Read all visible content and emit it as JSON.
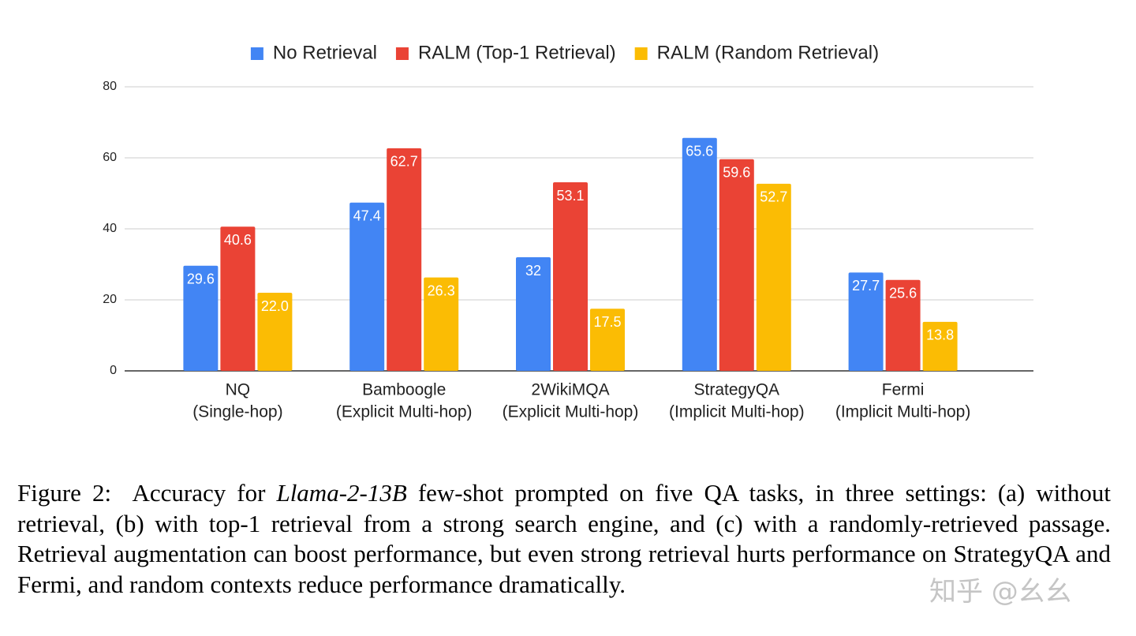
{
  "chart_data": {
    "type": "bar",
    "categories": [
      [
        "NQ",
        "(Single-hop)"
      ],
      [
        "Bamboogle",
        "(Explicit Multi-hop)"
      ],
      [
        "2WikiMQA",
        "(Explicit Multi-hop)"
      ],
      [
        "StrategyQA",
        "(Implicit Multi-hop)"
      ],
      [
        "Fermi",
        "(Implicit Multi-hop)"
      ]
    ],
    "series": [
      {
        "name": "No Retrieval",
        "color": "#4285f4",
        "values": [
          29.6,
          47.4,
          32,
          65.6,
          27.7
        ]
      },
      {
        "name": "RALM (Top-1 Retrieval)",
        "color": "#ea4335",
        "values": [
          40.6,
          62.7,
          53.1,
          59.6,
          25.6
        ]
      },
      {
        "name": "RALM (Random Retrieval)",
        "color": "#fbbc04",
        "values": [
          22.0,
          26.3,
          17.5,
          52.7,
          13.8
        ],
        "value_labels": [
          "22.0",
          "26.3",
          "17.5",
          "52.7",
          "13.8"
        ]
      }
    ],
    "ylim": [
      0,
      80
    ],
    "yticks": [
      0,
      20,
      40,
      60,
      80
    ],
    "grid": true,
    "legend": "top"
  },
  "caption": {
    "label": "Figure 2:",
    "before": "Accuracy for",
    "italic": "Llama-2-13B",
    "after": "few-shot prompted on five QA tasks, in three settings: (a) without retrieval, (b) with top-1 retrieval from a strong search engine, and (c) with a randomly-retrieved passage. Retrieval augmentation can boost performance, but even strong retrieval hurts performance on StrategyQA and Fermi, and random contexts reduce performance dramatically."
  },
  "watermark": "知乎 @幺幺"
}
